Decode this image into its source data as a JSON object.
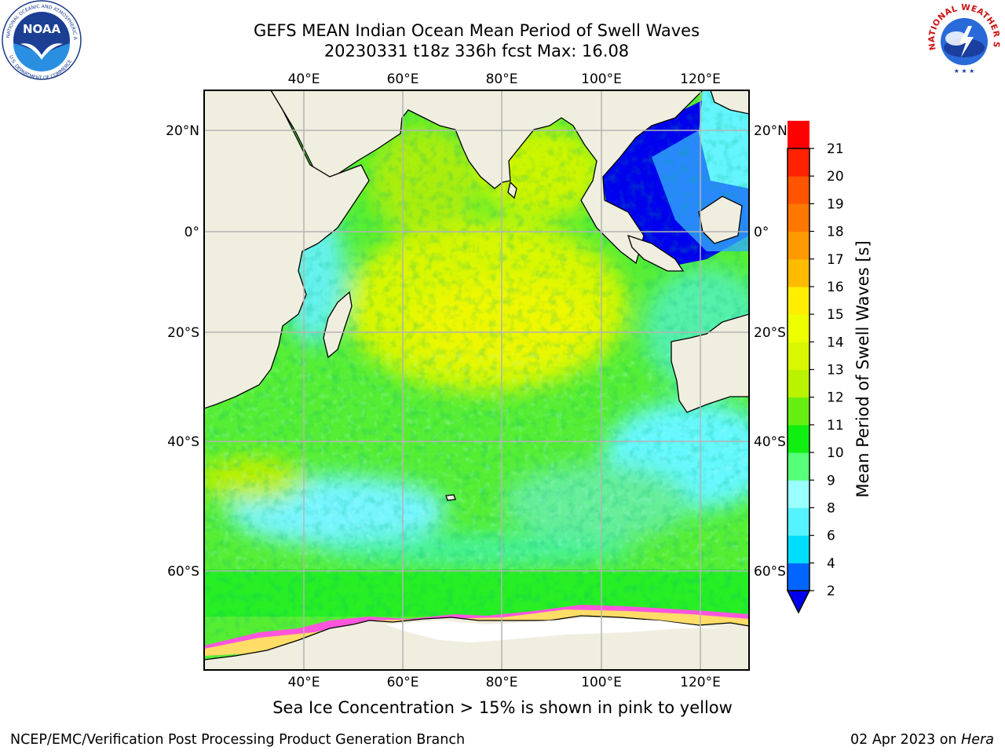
{
  "title_line1": "GEFS MEAN Indian Ocean Mean Period of Swell Waves",
  "title_line2": "20230331 t18z 336h fcst   Max: 16.08",
  "axes": {
    "lon_ticks": [
      "40°E",
      "60°E",
      "80°E",
      "100°E",
      "120°E"
    ],
    "lat_ticks": [
      "20°N",
      "0°",
      "20°S",
      "40°S",
      "60°S"
    ]
  },
  "colorbar": {
    "label": "Mean Period of Swell Waves [s]",
    "ticks": [
      "2",
      "4",
      "6",
      "8",
      "9",
      "10",
      "11",
      "12",
      "13",
      "14",
      "15",
      "16",
      "17",
      "18",
      "19",
      "20",
      "21"
    ],
    "colors": [
      "#0066ff",
      "#00ddff",
      "#55f2ff",
      "#99ffff",
      "#55ff77",
      "#11ee11",
      "#66ee11",
      "#bbf200",
      "#d8f700",
      "#eeff00",
      "#ffee00",
      "#ffbb00",
      "#ff9900",
      "#ff7700",
      "#ff5500",
      "#ff2200",
      "#ff0000"
    ],
    "under_color": "#0000ee"
  },
  "colors": {
    "land": "#efeedf",
    "grid": "#b4b4b4",
    "ice_pink": "#ff55dd",
    "ice_yellow": "#ffdd66"
  },
  "logos": {
    "noaa_text": "NOAA",
    "nws_text": "NATIONAL WEATHER SERVICE"
  },
  "sea_ice_note": "Sea Ice Concentration > 15% is shown in pink to yellow",
  "footer": {
    "left": "NCEP/EMC/Verification Post Processing Product Generation Branch",
    "date": "02 Apr 2023 on ",
    "host": "Hera"
  }
}
